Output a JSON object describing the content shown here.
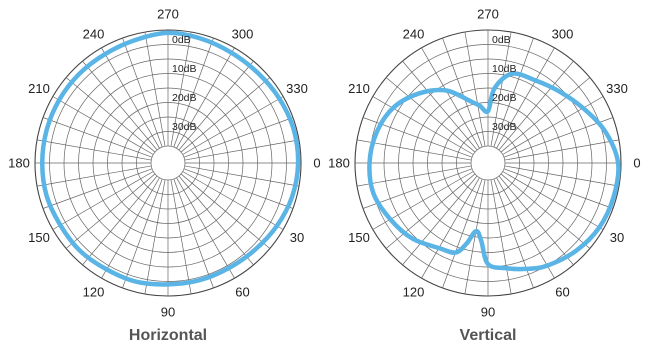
{
  "chart_data": [
    {
      "type": "polar-line",
      "title": "Horizontal",
      "angle_labels": [
        "0",
        "30",
        "60",
        "90",
        "120",
        "150",
        "180",
        "210",
        "240",
        "270",
        "300",
        "330"
      ],
      "db_labels": [
        "0dB",
        "10dB",
        "20dB",
        "30dB"
      ],
      "radial_range_db": [
        -40,
        0
      ],
      "series": [
        {
          "color": "#5ab4e5",
          "angles_deg": [
            0,
            15,
            30,
            45,
            60,
            75,
            90,
            105,
            120,
            135,
            150,
            165,
            180,
            195,
            210,
            225,
            240,
            255,
            270,
            285,
            300,
            315,
            330,
            345
          ],
          "values_db": [
            -1,
            -1.5,
            -2.5,
            -3.5,
            -4,
            -4,
            -4,
            -3.5,
            -3.5,
            -3,
            -3,
            -2.5,
            -2.5,
            -2.5,
            -2.5,
            -2.5,
            -2.5,
            -2,
            -1,
            -1.5,
            -2,
            -2,
            -1.5,
            -1
          ]
        }
      ]
    },
    {
      "type": "polar-line",
      "title": "Vertical",
      "angle_labels": [
        "0",
        "30",
        "60",
        "90",
        "120",
        "150",
        "180",
        "210",
        "240",
        "270",
        "300",
        "330"
      ],
      "db_labels": [
        "0dB",
        "10dB",
        "20dB",
        "30dB"
      ],
      "radial_range_db": [
        -40,
        0
      ],
      "series": [
        {
          "color": "#5ab4e5",
          "angles_deg": [
            0,
            15,
            30,
            45,
            60,
            70,
            80,
            90,
            95,
            100,
            105,
            110,
            120,
            135,
            150,
            165,
            180,
            195,
            210,
            225,
            240,
            255,
            262,
            270,
            275,
            285,
            300,
            315,
            330,
            345
          ],
          "values_db": [
            -1,
            -1,
            -1.5,
            -3,
            -5,
            -7,
            -9,
            -11,
            -19,
            -22,
            -17,
            -13,
            -12,
            -9,
            -7,
            -5,
            -5,
            -6,
            -8,
            -12,
            -17,
            -24,
            -26,
            -28,
            -20,
            -14,
            -13,
            -11,
            -8,
            -4
          ]
        }
      ]
    }
  ]
}
